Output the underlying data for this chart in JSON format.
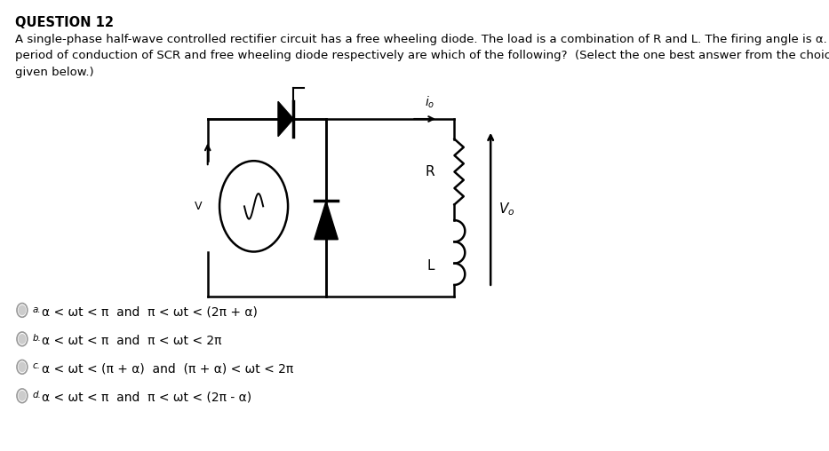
{
  "title": "QUESTION 12",
  "question_text": "A single-phase half-wave controlled rectifier circuit has a free wheeling diode. The load is a combination of R and L. The firing angle is α. The\nperiod of conduction of SCR and free wheeling diode respectively are which of the following?  (Select the one best answer from the choices\ngiven below.)",
  "choices": [
    {
      "label": "a.",
      "text": "α < ωt < π  and  π < ωt < (2π + α)"
    },
    {
      "label": "b.",
      "text": "α < ωt < π  and  π < ωt < 2π"
    },
    {
      "label": "c.",
      "text": "α < ωt < (π + α)  and  (π + α) < ωt < 2π"
    },
    {
      "label": "d.",
      "text": "α < ωt < π  and  π < ωt < (2π - α)"
    }
  ],
  "bg_color": "#ffffff",
  "text_color": "#000000",
  "font_size_title": 10.5,
  "font_size_question": 9.5,
  "font_size_choice": 10
}
